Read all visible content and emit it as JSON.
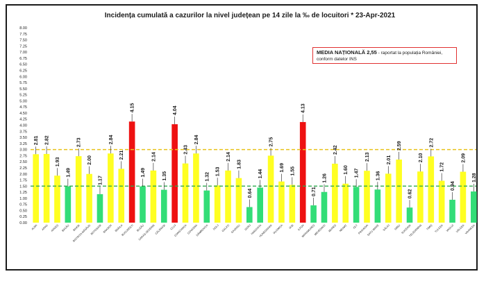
{
  "chart_data": {
    "type": "bar",
    "title": "Incidența cumulată a cazurilor la nivel județean pe 14 zile la ‰ de locuitori *  23-Apr-2021",
    "ylim": [
      0,
      8
    ],
    "yticks": [
      "0.00",
      "0.25",
      "0.50",
      "0.75",
      "1.00",
      "1.25",
      "1.50",
      "1.75",
      "2.00",
      "2.25",
      "2.50",
      "2.75",
      "3.00",
      "3.25",
      "3.50",
      "3.75",
      "4.00",
      "4.25",
      "4.50",
      "4.75",
      "5.00",
      "5.25",
      "5.50",
      "5.75",
      "6.00",
      "6.25",
      "6.50",
      "6.75",
      "7.00",
      "7.25",
      "7.50",
      "7.75",
      "8.00"
    ],
    "categories": [
      "ALBA",
      "ARAD",
      "ARGEȘ",
      "BACĂU",
      "BIHOR",
      "BISTRIȚA-NĂSĂUD",
      "BOTOȘANI",
      "BRAȘOV",
      "BRĂILA",
      "BUCUREȘTI",
      "BUZĂU",
      "CARAȘ-SEVERIN",
      "CĂLĂRAȘI",
      "CLUJ",
      "CONSTANȚA",
      "COVASNA",
      "DÂMBOVIȚA",
      "DOLJ",
      "GALAȚI",
      "GIURGIU",
      "GORJ",
      "HARGHITA",
      "HUNEDOARA",
      "IALOMIȚA",
      "IAȘI",
      "ILFOV",
      "MARAMUREȘ",
      "MEHEDINȚI",
      "MUREȘ",
      "NEAMȚ",
      "OLT",
      "PRAHOVA",
      "SATU MARE",
      "SĂLAJ",
      "SIBIU",
      "SUCEAVA",
      "TELEORMAN",
      "TIMIȘ",
      "TULCEA",
      "VASLUI",
      "VÂLCEA",
      "VRANCEA"
    ],
    "values": [
      2.81,
      2.82,
      1.93,
      1.49,
      2.73,
      2.0,
      1.17,
      2.84,
      2.21,
      4.15,
      1.49,
      2.14,
      1.35,
      4.04,
      2.43,
      2.84,
      1.32,
      1.53,
      2.14,
      1.83,
      0.64,
      1.44,
      2.75,
      1.69,
      1.55,
      4.13,
      0.71,
      1.26,
      2.42,
      1.6,
      1.47,
      2.13,
      1.36,
      2.01,
      2.59,
      0.62,
      2.1,
      2.72,
      1.72,
      0.94,
      2.09,
      1.28
    ],
    "value_labels": [
      "2.81",
      "2.82",
      "1.93",
      "1.49",
      "2.73",
      "2.00",
      "1.17",
      "2.84",
      "2.21",
      "4.15",
      "1.49",
      "2.14",
      "1.35",
      "4.04",
      "2.43",
      "2.84",
      "1.32",
      "1.53",
      "2.14",
      "1.83",
      "0.64",
      "1.44",
      "2.75",
      "1.69",
      "1.55",
      "4.13",
      "0.71",
      "1.26",
      "2.42",
      "1.60",
      "1.47",
      "2.13",
      "1.36",
      "2.01",
      "2.59",
      "0.62",
      "2.10",
      "2.72",
      "1.72",
      "0.94",
      "2.09",
      "1.28"
    ],
    "thresholds": [
      {
        "value": 3.0,
        "color": "#e8c21a",
        "style": "dashed"
      },
      {
        "value": 1.5,
        "color": "#2eaa4f",
        "style": "dashed"
      }
    ],
    "bar_colors": {
      "low": "#33dd77",
      "mid": "#ffff22",
      "high": "#ee1111"
    },
    "legend": {
      "strong": "MEDIA NAȚIONALĂ  2,55",
      "rest1": " - raportat la populația României,",
      "rest2": "conform datelor INS"
    },
    "grid": false
  }
}
